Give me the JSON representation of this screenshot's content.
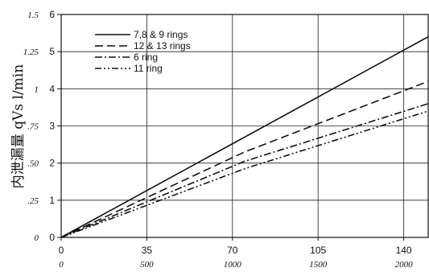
{
  "chart_data": {
    "type": "line",
    "ylabel": "内泄漏量 qVs l/min",
    "x_ticks": [
      "0",
      "35",
      "70",
      "105",
      "140"
    ],
    "x2_ticks": [
      "0",
      "500",
      "1000",
      "1500",
      "2000"
    ],
    "y_ticks": [
      "0",
      "1",
      "2",
      "3",
      "4",
      "5",
      "6"
    ],
    "y2_ticks": [
      "0",
      ".25",
      ".50",
      ".75",
      "1",
      "1.25",
      "1.5"
    ],
    "xlim": [
      0,
      150
    ],
    "ylim": [
      0,
      6
    ],
    "grid": true,
    "legend_position": "top-left",
    "series": [
      {
        "name": "7,8 & 9 rings",
        "style": "solid",
        "x": [
          0,
          150
        ],
        "y": [
          0,
          5.4
        ]
      },
      {
        "name": "12 & 13 rings",
        "style": "dashed",
        "x": [
          0,
          75,
          150
        ],
        "y": [
          0,
          2.3,
          4.2
        ]
      },
      {
        "name": "6 ring",
        "style": "dashdot",
        "x": [
          0,
          75,
          150
        ],
        "y": [
          0,
          2.05,
          3.6
        ]
      },
      {
        "name": "11 ring",
        "style": "dashdotdot",
        "x": [
          0,
          75,
          150
        ],
        "y": [
          0,
          1.85,
          3.4
        ]
      }
    ]
  }
}
